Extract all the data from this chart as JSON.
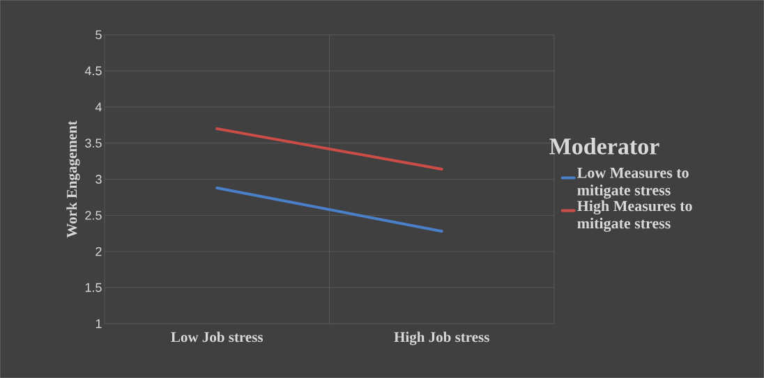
{
  "chart_data": {
    "type": "line",
    "xlabel": null,
    "ylabel": "Work Engagement",
    "legend_title": "Moderator",
    "categories": [
      "Low Job stress",
      "High Job stress"
    ],
    "series": [
      {
        "name": "Low Measures to mitigate stress",
        "color": "#4a7fc9",
        "values": [
          2.88,
          2.28
        ]
      },
      {
        "name": "High Measures to mitigate stress",
        "color": "#cc4d48",
        "values": [
          3.7,
          3.14
        ]
      }
    ],
    "ylim": [
      1,
      5
    ],
    "yticks": [
      1,
      1.5,
      2,
      2.5,
      3,
      3.5,
      4,
      4.5,
      5
    ],
    "grid": true,
    "legend": "right",
    "marker": "none",
    "line_style": "solid"
  }
}
